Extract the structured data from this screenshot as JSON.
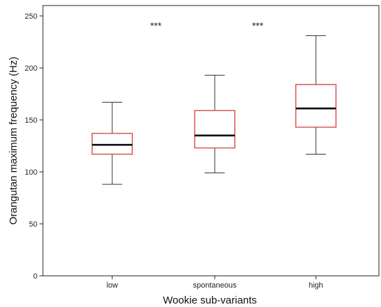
{
  "chart_data": {
    "type": "box",
    "xlabel": "Wookie sub-variants",
    "ylabel": "Orangutan maximum frequency (Hz)",
    "ylim": [
      0,
      260
    ],
    "yticks": [
      0,
      50,
      100,
      150,
      200,
      250
    ],
    "categories": [
      "low",
      "spontaneous",
      "high"
    ],
    "boxes": [
      {
        "category": "low",
        "whisker_low": 88,
        "q1": 117,
        "median": 126,
        "q3": 137,
        "whisker_high": 167
      },
      {
        "category": "spontaneous",
        "whisker_low": 99,
        "q1": 123,
        "median": 135,
        "q3": 159,
        "whisker_high": 193
      },
      {
        "category": "high",
        "whisker_low": 117,
        "q1": 143,
        "median": 161,
        "q3": 184,
        "whisker_high": 231
      }
    ],
    "annotations": [
      {
        "text": "***",
        "between": [
          "low",
          "spontaneous"
        ]
      },
      {
        "text": "***",
        "between": [
          "spontaneous",
          "high"
        ]
      }
    ],
    "box_color": "#d9534f",
    "median_color": "#000000",
    "whisker_color": "#333333",
    "grid": false
  }
}
